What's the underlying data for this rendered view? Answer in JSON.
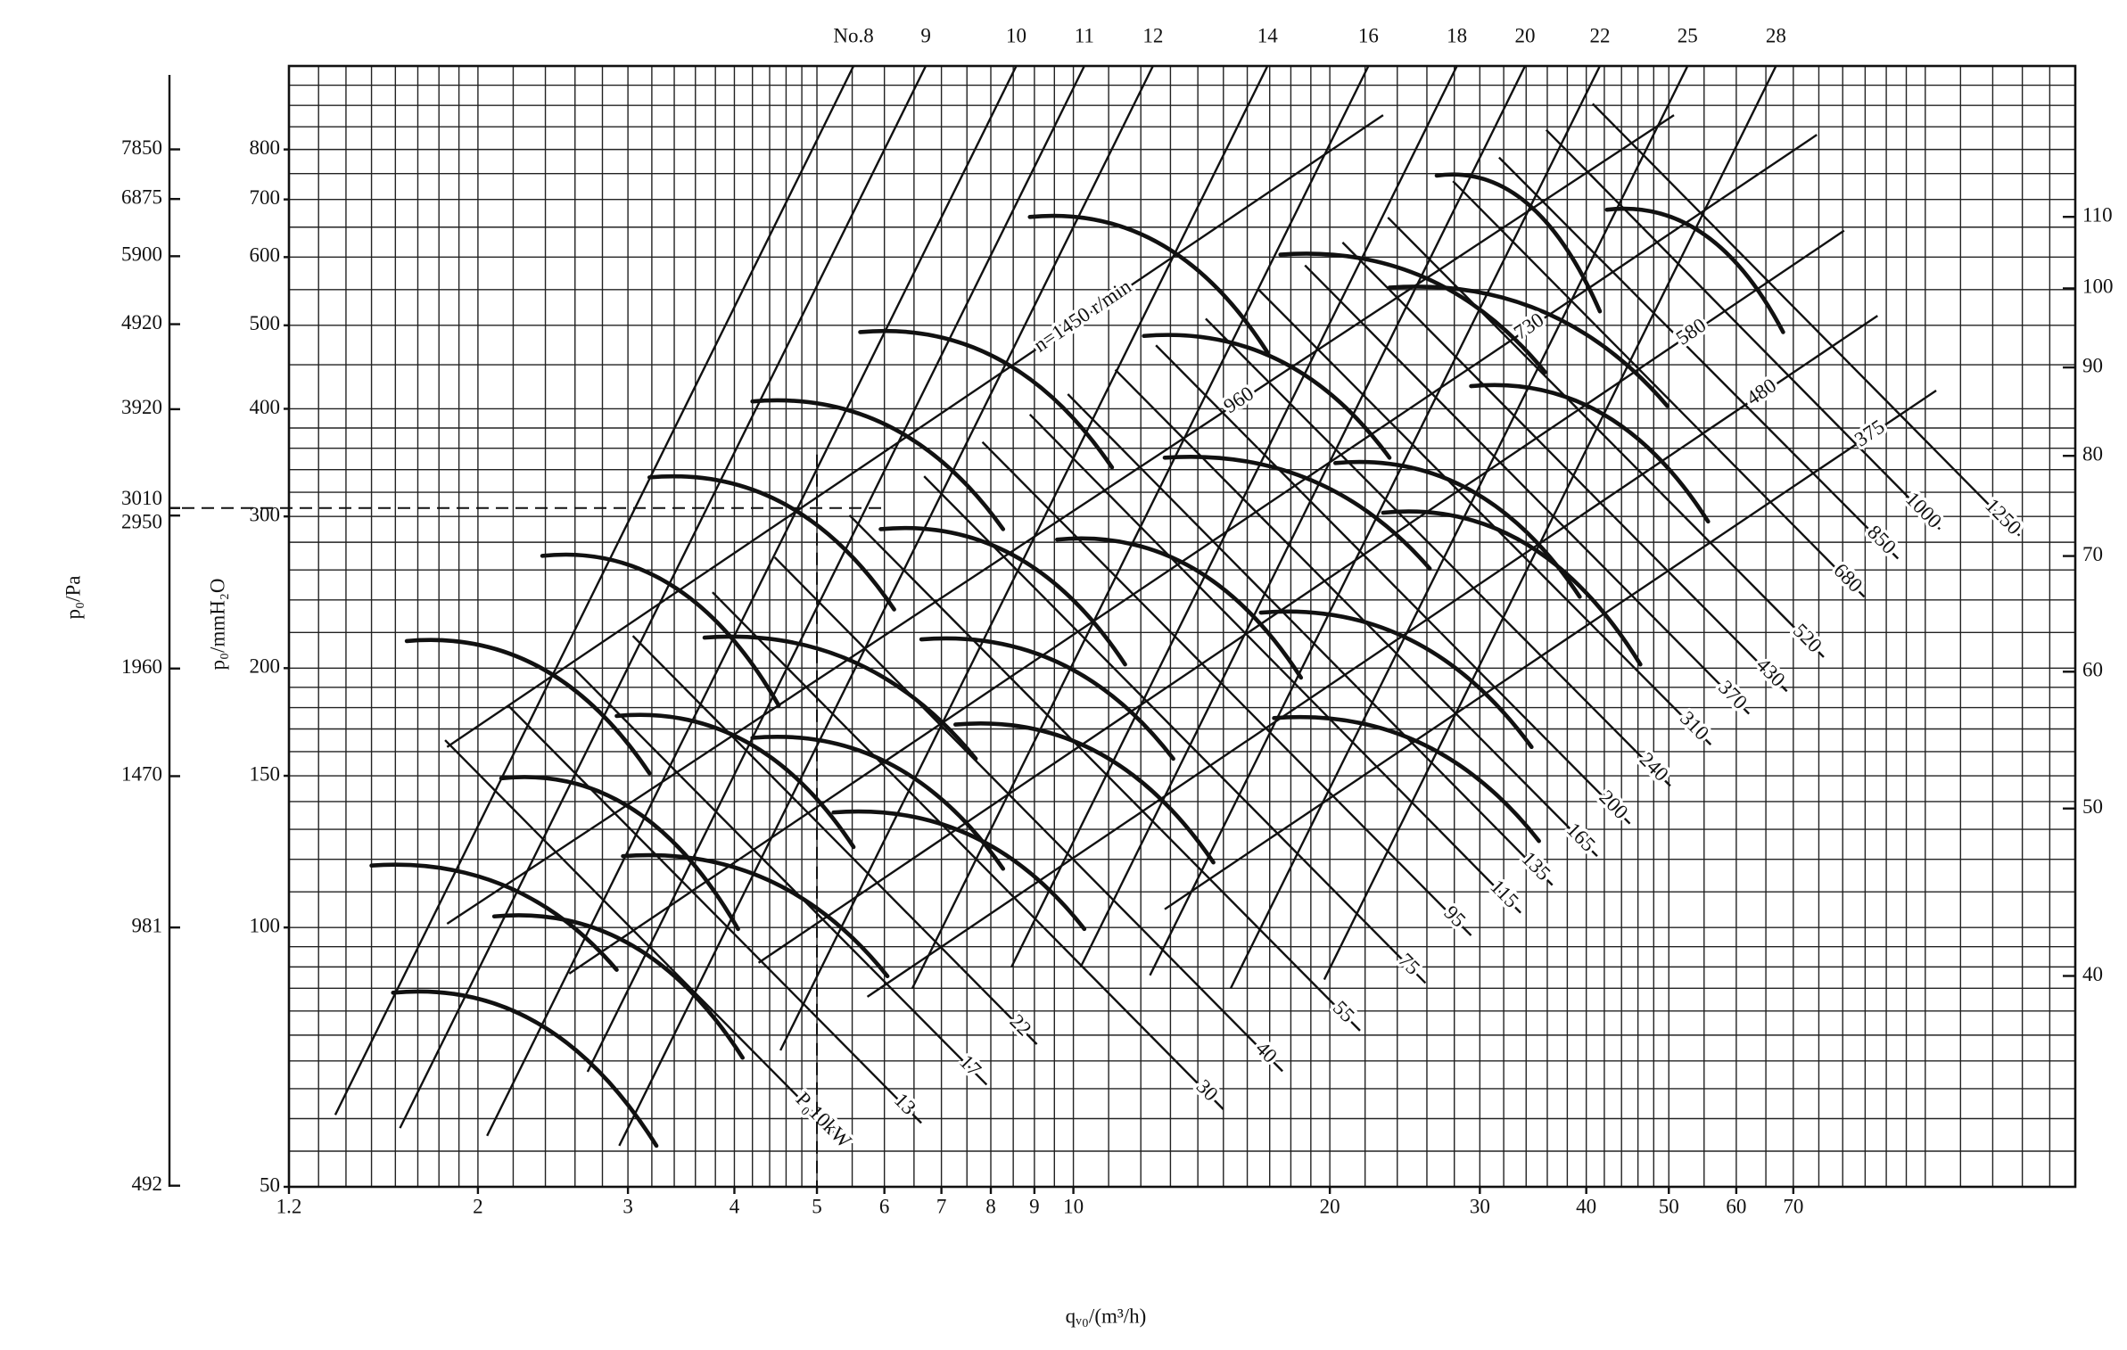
{
  "chart_data": {
    "type": "nomogram",
    "log": true,
    "xlabel": "qᵥ₀/(m³/h)",
    "ylabel": "p₀/mmH₂O",
    "y2label": "p₀/Pa",
    "xlim": [
      1.2,
      150
    ],
    "ylim": [
      50,
      1000
    ],
    "y2lim": [
      490.5,
      9810
    ],
    "y3lim": [
      30.2,
      134.5
    ],
    "xticks": [
      1.2,
      2,
      3,
      4,
      5,
      6,
      7,
      8,
      9,
      10,
      20,
      30,
      40,
      50,
      60,
      70
    ],
    "yticks": [
      800,
      700,
      600,
      500,
      400,
      300,
      200,
      150,
      100,
      50
    ],
    "y2ticks": [
      7850,
      6875,
      5900,
      4920,
      3920,
      3010,
      2950,
      1960,
      1470,
      981,
      492
    ],
    "y3ticks": [
      110,
      100,
      90,
      80,
      70,
      60,
      50,
      40
    ],
    "xgrid": [
      1.3,
      1.4,
      1.5,
      1.6,
      1.7,
      1.8,
      1.9,
      2,
      2.2,
      2.4,
      2.6,
      2.8,
      3,
      3.2,
      3.4,
      3.6,
      3.8,
      4,
      4.2,
      4.4,
      4.6,
      4.8,
      5,
      5.5,
      6,
      6.5,
      7,
      7.5,
      8,
      8.5,
      9,
      9.5,
      10,
      11,
      12,
      13,
      14,
      15,
      16,
      17,
      18,
      19,
      20,
      22,
      24,
      26,
      28,
      30,
      32,
      34,
      36,
      38,
      40,
      42,
      44,
      46,
      48,
      50,
      55,
      60,
      65,
      70,
      75,
      80,
      85,
      90,
      95,
      100,
      110,
      120,
      130,
      140
    ],
    "ygrid": [
      55,
      60,
      65,
      70,
      75,
      80,
      85,
      90,
      95,
      100,
      110,
      120,
      130,
      140,
      150,
      160,
      170,
      180,
      190,
      200,
      220,
      240,
      260,
      280,
      300,
      320,
      340,
      360,
      380,
      400,
      450,
      500,
      550,
      600,
      650,
      700,
      750,
      800,
      850,
      900,
      950
    ],
    "fan_lines": [
      {
        "name": "No.8",
        "q": [
          1.36,
          5.52
        ],
        "p": [
          60.6,
          1000
        ]
      },
      {
        "name": "9",
        "q": [
          1.62,
          6.71
        ],
        "p": [
          58.5,
          1000
        ]
      },
      {
        "name": "10",
        "q": [
          2.05,
          8.57
        ],
        "p": [
          57.3,
          1000
        ]
      },
      {
        "name": "11",
        "q": [
          2.69,
          10.3
        ],
        "p": [
          68,
          1000
        ]
      },
      {
        "name": "12",
        "q": [
          2.93,
          12.4
        ],
        "p": [
          55.8,
          1000
        ]
      },
      {
        "name": "14",
        "q": [
          4.53,
          16.9
        ],
        "p": [
          72,
          1000
        ]
      },
      {
        "name": "16",
        "q": [
          6.47,
          22.2
        ],
        "p": [
          85,
          1000
        ]
      },
      {
        "name": "18",
        "q": [
          8.46,
          28.2
        ],
        "p": [
          90,
          1000
        ]
      },
      {
        "name": "20",
        "q": [
          10.2,
          33.9
        ],
        "p": [
          90,
          1000
        ]
      },
      {
        "name": "22",
        "q": [
          12.3,
          41.5
        ],
        "p": [
          88,
          1000
        ]
      },
      {
        "name": "25",
        "q": [
          15.3,
          52.6
        ],
        "p": [
          85,
          1000
        ]
      },
      {
        "name": "28",
        "q": [
          19.7,
          66.8
        ],
        "p": [
          87,
          1000
        ]
      }
    ],
    "power_lines": [
      {
        "name": "P₀10kW",
        "q": [
          1.83,
          5.32
        ],
        "p": [
          165,
          56.8
        ]
      },
      {
        "name": "13",
        "q": [
          2.17,
          6.63
        ],
        "p": [
          181,
          59.3
        ]
      },
      {
        "name": "17",
        "q": [
          2.59,
          7.91
        ],
        "p": [
          200,
          65.7
        ]
      },
      {
        "name": "22",
        "q": [
          3.04,
          9.06
        ],
        "p": [
          218,
          73.2
        ]
      },
      {
        "name": "30",
        "q": [
          3.77,
          15.0
        ],
        "p": [
          245,
          61.5
        ]
      },
      {
        "name": "40",
        "q": [
          4.46,
          17.6
        ],
        "p": [
          269,
          68.1
        ]
      },
      {
        "name": "55",
        "q": [
          5.46,
          21.7
        ],
        "p": [
          301,
          75.9
        ]
      },
      {
        "name": "75",
        "q": [
          6.68,
          25.9
        ],
        "p": [
          334,
          86.2
        ]
      },
      {
        "name": "95",
        "q": [
          7.82,
          29.3
        ],
        "p": [
          366,
          97.9
        ]
      },
      {
        "name": "115",
        "q": [
          8.89,
          33.5
        ],
        "p": [
          394,
          104
        ]
      },
      {
        "name": "135",
        "q": [
          9.85,
          36.5
        ],
        "p": [
          416,
          112
        ]
      },
      {
        "name": "165",
        "q": [
          11.2,
          41.2
        ],
        "p": [
          444,
          121
        ]
      },
      {
        "name": "200",
        "q": [
          12.5,
          45.0
        ],
        "p": [
          474,
          132
        ]
      },
      {
        "name": "240",
        "q": [
          14.3,
          50.2
        ],
        "p": [
          509,
          146
        ]
      },
      {
        "name": "310",
        "q": [
          16.5,
          56.0
        ],
        "p": [
          550,
          163
        ]
      },
      {
        "name": "370",
        "q": [
          18.7,
          62.1
        ],
        "p": [
          587,
          177
        ]
      },
      {
        "name": "430",
        "q": [
          20.7,
          68.8
        ],
        "p": [
          624,
          188
        ]
      },
      {
        "name": "520",
        "q": [
          23.4,
          76.0
        ],
        "p": [
          667,
          206
        ]
      },
      {
        "name": "680",
        "q": [
          27.9,
          84.8
        ],
        "p": [
          735,
          242
        ]
      },
      {
        "name": "850",
        "q": [
          31.6,
          92.9
        ],
        "p": [
          783,
          268
        ]
      },
      {
        "name": "1000",
        "q": [
          35.9,
          104
        ],
        "p": [
          843,
          290
        ]
      },
      {
        "name": "1250",
        "q": [
          40.7,
          129
        ],
        "p": [
          904,
          285
        ]
      }
    ],
    "speed_lines": [
      {
        "name": "n=1450 r/min",
        "q": [
          1.84,
          23.1
        ],
        "p": [
          162,
          877
        ]
      },
      {
        "name": "960",
        "q": [
          1.84,
          50.7
        ],
        "p": [
          101,
          877
        ]
      },
      {
        "name": "730",
        "q": [
          2.56,
          74.6
        ],
        "p": [
          88.4,
          832
        ]
      },
      {
        "name": "580",
        "q": [
          4.27,
          80.3
        ],
        "p": [
          91.0,
          644
        ]
      },
      {
        "name": "480",
        "q": [
          5.73,
          87.9
        ],
        "p": [
          83.1,
          513
        ]
      },
      {
        "name": "375",
        "q": [
          12.8,
          103
        ],
        "p": [
          105,
          420
        ]
      }
    ],
    "curves": [
      {
        "q": [
          1.59,
          3.24
        ],
        "p": [
          84.0,
          55.8
        ]
      },
      {
        "q": [
          1.5,
          2.91
        ],
        "p": [
          118,
          89.3
        ]
      },
      {
        "q": [
          1.65,
          3.18
        ],
        "p": [
          215,
          151
        ]
      },
      {
        "q": [
          2.13,
          4.04
        ],
        "p": [
          149,
          99.6
        ]
      },
      {
        "q": [
          2.09,
          4.09
        ],
        "p": [
          103,
          70.6
        ]
      },
      {
        "q": [
          2.38,
          4.51
        ],
        "p": [
          270,
          181
        ]
      },
      {
        "q": [
          2.91,
          5.52
        ],
        "p": [
          176,
          124
        ]
      },
      {
        "q": [
          2.96,
          6.05
        ],
        "p": [
          121,
          87.8
        ]
      },
      {
        "q": [
          3.18,
          6.16
        ],
        "p": [
          333,
          234
        ]
      },
      {
        "q": [
          3.69,
          7.68
        ],
        "p": [
          217,
          157
        ]
      },
      {
        "q": [
          4.2,
          8.27
        ],
        "p": [
          166,
          117
        ]
      },
      {
        "q": [
          5.23,
          10.3
        ],
        "p": [
          136,
          99.6
        ]
      },
      {
        "q": [
          4.2,
          8.27
        ],
        "p": [
          408,
          290
        ]
      },
      {
        "q": [
          5.62,
          11.1
        ],
        "p": [
          491,
          342
        ]
      },
      {
        "q": [
          5.94,
          11.5
        ],
        "p": [
          290,
          202
        ]
      },
      {
        "q": [
          6.63,
          13.1
        ],
        "p": [
          216,
          157
        ]
      },
      {
        "q": [
          7.27,
          14.6
        ],
        "p": [
          172,
          119
        ]
      },
      {
        "q": [
          8.89,
          16.9
        ],
        "p": [
          668,
          465
        ]
      },
      {
        "q": [
          12.1,
          23.5
        ],
        "p": [
          486,
          351
        ]
      },
      {
        "q": [
          9.57,
          18.5
        ],
        "p": [
          282,
          195
        ]
      },
      {
        "q": [
          12.8,
          26.2
        ],
        "p": [
          351,
          261
        ]
      },
      {
        "q": [
          16.6,
          34.5
        ],
        "p": [
          232,
          162
        ]
      },
      {
        "q": [
          17.2,
          35.2
        ],
        "p": [
          175,
          126
        ]
      },
      {
        "q": [
          17.5,
          35.8
        ],
        "p": [
          604,
          441
        ]
      },
      {
        "q": [
          20.3,
          39.3
        ],
        "p": [
          346,
          242
        ]
      },
      {
        "q": [
          23.1,
          46.3
        ],
        "p": [
          303,
          202
        ]
      },
      {
        "q": [
          23.5,
          49.8
        ],
        "p": [
          553,
          403
        ]
      },
      {
        "q": [
          29.3,
          55.6
        ],
        "p": [
          425,
          296
        ]
      },
      {
        "q": [
          26.7,
          41.5
        ],
        "p": [
          746,
          519
        ]
      },
      {
        "q": [
          42.3,
          68.1
        ],
        "p": [
          681,
          491
        ]
      }
    ],
    "guide": {
      "q": 5,
      "p": 3010
    }
  }
}
